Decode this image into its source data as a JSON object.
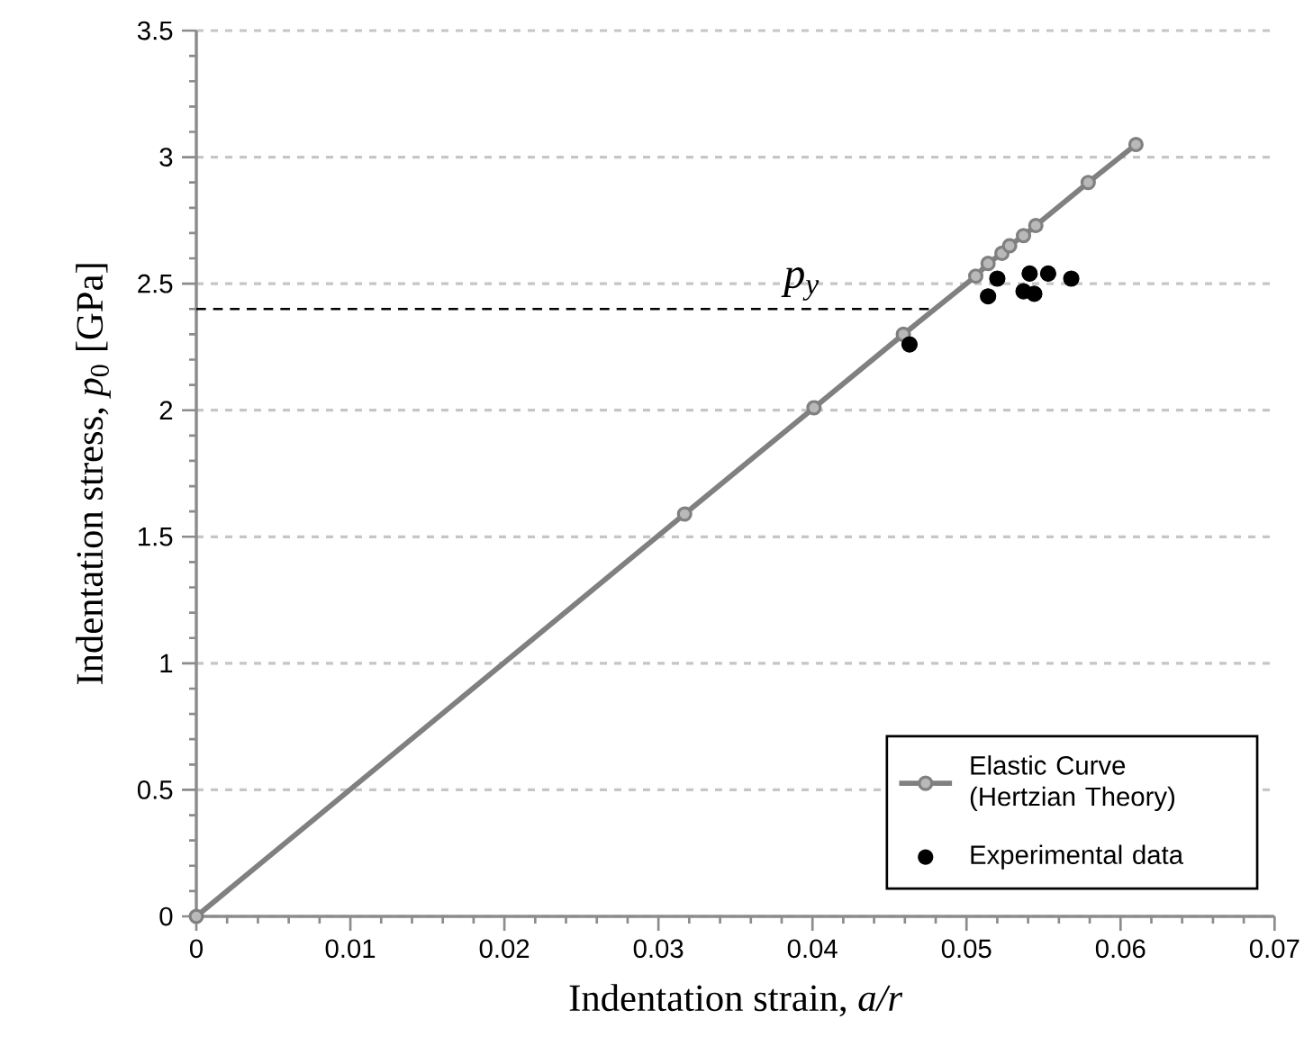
{
  "chart_data": {
    "type": "line",
    "xlabel": "Indentation strain, *a/r*",
    "ylabel": "Indentation stress, *p*$_{0}$ [GPa]",
    "xlim": [
      0,
      0.07
    ],
    "xticks": [
      0,
      0.01,
      0.02,
      0.03,
      0.04,
      0.05,
      0.06,
      0.07
    ],
    "ylim": [
      0,
      3.5
    ],
    "yticks": [
      0,
      0.5,
      1,
      1.5,
      2,
      2.5,
      3,
      3.5
    ],
    "grid": "y",
    "legend": "bottom right",
    "ref_lines": [
      {
        "axis": "y",
        "value": 2.4,
        "label": "p$_{y}$",
        "color": "#000000",
        "line_style": "dashed"
      }
    ],
    "series": [
      {
        "name": "Elastic Curve (Hertzian Theory)",
        "color": "#808080",
        "marker": "circle",
        "line_style": "solid",
        "x": [
          0,
          0.0317,
          0.0401,
          0.0459,
          0.0506,
          0.0514,
          0.0523,
          0.0528,
          0.0537,
          0.0545,
          0.0579,
          0.061
        ],
        "values": [
          0,
          1.59,
          2.01,
          2.3,
          2.53,
          2.58,
          2.62,
          2.65,
          2.69,
          2.73,
          2.9,
          3.05
        ]
      },
      {
        "name": "Experimental data",
        "type": "scatter",
        "color": "#000000",
        "marker": "circle",
        "x": [
          0.0463,
          0.052,
          0.0514,
          0.0541,
          0.0553,
          0.0537,
          0.0544,
          0.0568
        ],
        "values": [
          2.26,
          2.52,
          2.45,
          2.54,
          2.54,
          2.47,
          2.46,
          2.52
        ]
      }
    ]
  }
}
